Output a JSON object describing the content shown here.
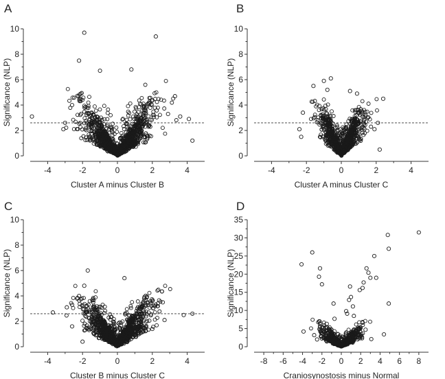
{
  "chart_data": [
    {
      "type": "scatter",
      "panel": "A",
      "xlabel": "Cluster A minus Cluster B",
      "ylabel": "Significance (NLP)",
      "xlim": [
        -5,
        5
      ],
      "ylim": [
        0,
        10
      ],
      "xticks": [
        "-4",
        "-2",
        "0",
        "2",
        "4"
      ],
      "xtick_values": [
        -4,
        -2,
        0,
        2,
        4
      ],
      "yticks": [
        "0",
        "2",
        "4",
        "6",
        "8",
        "10"
      ],
      "ytick_values": [
        0,
        2,
        4,
        6,
        8,
        10
      ],
      "threshold": 2.6,
      "cloud": {
        "count": 1300,
        "spread": 0.95,
        "steep": 2.0,
        "ymax": 6.2,
        "seed": 11
      },
      "outliers": [
        [
          -1.9,
          9.7
        ],
        [
          2.2,
          9.4
        ],
        [
          -2.2,
          7.5
        ],
        [
          -4.9,
          3.1
        ],
        [
          4.3,
          1.2
        ],
        [
          4.1,
          2.9
        ],
        [
          3.3,
          4.7
        ],
        [
          3.6,
          3.1
        ],
        [
          -3.1,
          2.1
        ],
        [
          -3.0,
          2.6
        ],
        [
          2.9,
          3.3
        ],
        [
          -1.0,
          6.7
        ],
        [
          0.8,
          6.8
        ],
        [
          -2.6,
          4.0
        ]
      ]
    },
    {
      "type": "scatter",
      "panel": "B",
      "xlabel": "Cluster A minus Cluster C",
      "ylabel": "Significance (NLP)",
      "xlim": [
        -5,
        5
      ],
      "ylim": [
        0,
        10
      ],
      "xticks": [
        "-4",
        "-2",
        "0",
        "2",
        "4"
      ],
      "xtick_values": [
        -4,
        -2,
        0,
        2,
        4
      ],
      "yticks": [
        "0",
        "2",
        "4",
        "6",
        "8",
        "10"
      ],
      "ytick_values": [
        0,
        2,
        4,
        6,
        8,
        10
      ],
      "threshold": 2.6,
      "cloud": {
        "count": 1000,
        "spread": 0.6,
        "steep": 3.2,
        "ymax": 4.6,
        "seed": 23
      },
      "outliers": [
        [
          -0.6,
          6.1
        ],
        [
          -1.0,
          5.9
        ],
        [
          -1.6,
          5.5
        ],
        [
          0.5,
          5.1
        ],
        [
          0.9,
          4.9
        ],
        [
          2.4,
          4.5
        ],
        [
          -2.2,
          3.4
        ],
        [
          -2.4,
          2.1
        ],
        [
          2.2,
          0.5
        ],
        [
          1.9,
          2.1
        ],
        [
          -2.3,
          1.5
        ],
        [
          2.1,
          2.6
        ],
        [
          -0.8,
          5.2
        ]
      ]
    },
    {
      "type": "scatter",
      "panel": "C",
      "xlabel": "Cluster B minus Cluster C",
      "ylabel": "Significance (NLP)",
      "xlim": [
        -5,
        5
      ],
      "ylim": [
        0,
        10
      ],
      "xticks": [
        "-4",
        "-2",
        "0",
        "2",
        "4"
      ],
      "xtick_values": [
        -4,
        -2,
        0,
        2,
        4
      ],
      "yticks": [
        "0",
        "2",
        "4",
        "6",
        "8",
        "10"
      ],
      "ytick_values": [
        0,
        2,
        4,
        6,
        8,
        10
      ],
      "threshold": 2.6,
      "cloud": {
        "count": 1300,
        "spread": 0.9,
        "steep": 2.0,
        "ymax": 5.0,
        "seed": 37
      },
      "outliers": [
        [
          -1.7,
          6.0
        ],
        [
          -3.7,
          2.7
        ],
        [
          3.8,
          2.5
        ],
        [
          4.3,
          2.6
        ],
        [
          -2.6,
          3.3
        ],
        [
          -2.9,
          3.1
        ],
        [
          -2.2,
          4.0
        ],
        [
          -1.9,
          4.8
        ],
        [
          0.4,
          5.4
        ],
        [
          -2.0,
          0.4
        ],
        [
          2.6,
          3.5
        ],
        [
          2.0,
          1.4
        ],
        [
          2.7,
          2.1
        ],
        [
          -2.6,
          1.6
        ]
      ]
    },
    {
      "type": "scatter",
      "panel": "D",
      "xlabel": "Craniosynostosis minus Normal",
      "ylabel": "Significance (NLP)",
      "xlim": [
        -9,
        9
      ],
      "ylim": [
        0,
        35
      ],
      "xticks": [
        "-8",
        "-6",
        "-4",
        "-2",
        "0",
        "2",
        "4",
        "6",
        "8"
      ],
      "xtick_values": [
        -8,
        -6,
        -4,
        -2,
        0,
        2,
        4,
        6,
        8
      ],
      "yticks": [
        "0",
        "5",
        "10",
        "15",
        "20",
        "25",
        "30",
        "35"
      ],
      "ytick_values": [
        0,
        5,
        10,
        15,
        20,
        25,
        30,
        35
      ],
      "threshold": null,
      "cloud": {
        "count": 700,
        "spread": 0.9,
        "steep": 3.0,
        "ymax": 8,
        "seed": 53
      },
      "outliers": [
        [
          8.0,
          31.5
        ],
        [
          4.8,
          30.8
        ],
        [
          4.9,
          27.0
        ],
        [
          -3.0,
          26.0
        ],
        [
          -4.1,
          22.7
        ],
        [
          -2.2,
          21.6
        ],
        [
          2.6,
          21.6
        ],
        [
          3.4,
          25.0
        ],
        [
          -2.3,
          19.3
        ],
        [
          2.8,
          20.4
        ],
        [
          3.0,
          19.0
        ],
        [
          3.6,
          19.0
        ],
        [
          -2.0,
          17.2
        ],
        [
          2.3,
          17.7
        ],
        [
          1.9,
          15.6
        ],
        [
          2.2,
          16.2
        ],
        [
          0.9,
          16.6
        ],
        [
          1.0,
          13.7
        ],
        [
          0.8,
          12.9
        ],
        [
          4.9,
          11.9
        ],
        [
          -0.8,
          11.9
        ],
        [
          1.2,
          11.1
        ],
        [
          0.5,
          9.8
        ],
        [
          0.6,
          9.1
        ],
        [
          -0.7,
          7.7
        ],
        [
          1.3,
          8.5
        ],
        [
          -3.9,
          4.2
        ],
        [
          -2.8,
          3.2
        ],
        [
          -2.5,
          2.0
        ],
        [
          -2.2,
          5.7
        ],
        [
          4.4,
          3.4
        ],
        [
          2.5,
          4.7
        ],
        [
          3.1,
          2.1
        ],
        [
          1.8,
          5.1
        ],
        [
          -1.5,
          6.3
        ]
      ]
    }
  ]
}
